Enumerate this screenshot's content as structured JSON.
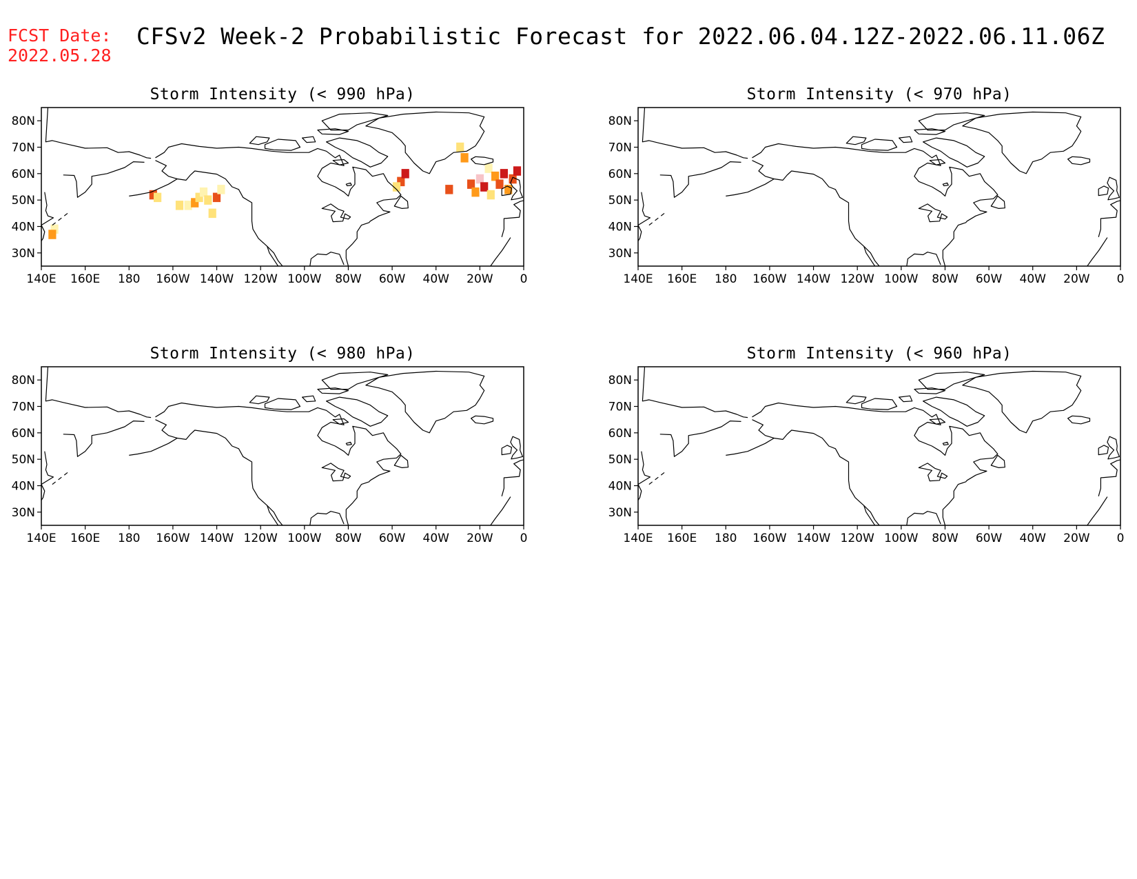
{
  "header": {
    "fcst_label": "FCST Date:",
    "fcst_date": "2022.05.28",
    "title": "CFSv2 Week-2 Probabilistic Forecast for 2022.06.04.12Z-2022.06.11.06Z"
  },
  "axes": {
    "x_ticks": [
      "140E",
      "160E",
      "180",
      "160W",
      "140W",
      "120W",
      "100W",
      "80W",
      "60W",
      "40W",
      "20W",
      "0"
    ],
    "y_ticks": [
      "80N",
      "70N",
      "60N",
      "50N",
      "40N",
      "30N"
    ],
    "y_values": [
      80,
      70,
      60,
      50,
      40,
      30
    ],
    "lon_range": [
      140,
      360
    ],
    "lat_range": [
      25,
      85
    ]
  },
  "colors": {
    "light_yellow": "#fff3b0",
    "yellow": "#ffe27a",
    "orange": "#ff9a1a",
    "dark_orange": "#e8501a",
    "red": "#cc1a1a",
    "pink": "#f7c4c8",
    "coast": "#000000",
    "fcst_text": "#ff2020"
  },
  "panels": [
    {
      "title": "Storm Intensity (< 990 hPa)",
      "shading": [
        {
          "lon": 191,
          "lat": 52,
          "level": "dark_orange"
        },
        {
          "lon": 193,
          "lat": 51,
          "level": "yellow"
        },
        {
          "lon": 203,
          "lat": 48,
          "level": "yellow"
        },
        {
          "lon": 207,
          "lat": 48,
          "level": "light_yellow"
        },
        {
          "lon": 210,
          "lat": 49,
          "level": "orange"
        },
        {
          "lon": 212,
          "lat": 51,
          "level": "yellow"
        },
        {
          "lon": 214,
          "lat": 53,
          "level": "light_yellow"
        },
        {
          "lon": 216,
          "lat": 50,
          "level": "yellow"
        },
        {
          "lon": 218,
          "lat": 45,
          "level": "yellow"
        },
        {
          "lon": 220,
          "lat": 51,
          "level": "dark_orange"
        },
        {
          "lon": 222,
          "lat": 54,
          "level": "light_yellow"
        },
        {
          "lon": 146,
          "lat": 39,
          "level": "light_yellow"
        },
        {
          "lon": 145,
          "lat": 37,
          "level": "orange"
        },
        {
          "lon": 304,
          "lat": 57,
          "level": "dark_orange"
        },
        {
          "lon": 306,
          "lat": 60,
          "level": "red"
        },
        {
          "lon": 302,
          "lat": 55,
          "level": "yellow"
        },
        {
          "lon": 326,
          "lat": 54,
          "level": "dark_orange"
        },
        {
          "lon": 331,
          "lat": 70,
          "level": "yellow"
        },
        {
          "lon": 333,
          "lat": 66,
          "level": "orange"
        },
        {
          "lon": 336,
          "lat": 56,
          "level": "dark_orange"
        },
        {
          "lon": 338,
          "lat": 53,
          "level": "orange"
        },
        {
          "lon": 340,
          "lat": 58,
          "level": "pink"
        },
        {
          "lon": 342,
          "lat": 55,
          "level": "red"
        },
        {
          "lon": 344,
          "lat": 62,
          "level": "light_yellow"
        },
        {
          "lon": 345,
          "lat": 52,
          "level": "yellow"
        },
        {
          "lon": 347,
          "lat": 59,
          "level": "orange"
        },
        {
          "lon": 349,
          "lat": 56,
          "level": "dark_orange"
        },
        {
          "lon": 351,
          "lat": 60,
          "level": "red"
        },
        {
          "lon": 353,
          "lat": 54,
          "level": "orange"
        },
        {
          "lon": 355,
          "lat": 58,
          "level": "dark_orange"
        },
        {
          "lon": 357,
          "lat": 61,
          "level": "red"
        }
      ]
    },
    {
      "title": "Storm Intensity (< 970 hPa)",
      "shading": []
    },
    {
      "title": "Storm Intensity (< 980 hPa)",
      "shading": []
    },
    {
      "title": "Storm Intensity (< 960 hPa)",
      "shading": []
    }
  ]
}
